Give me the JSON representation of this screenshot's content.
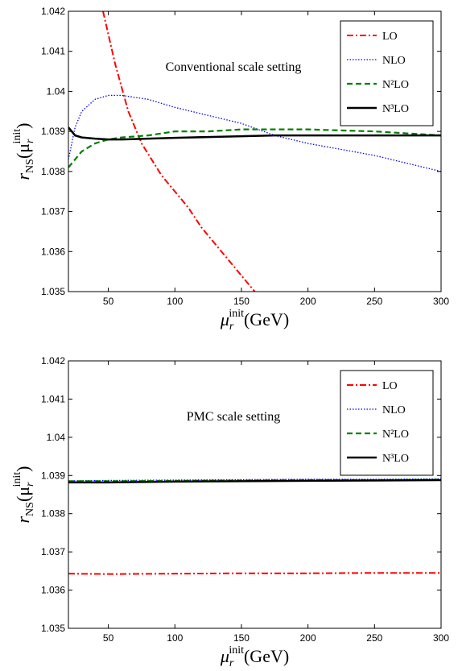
{
  "chart_data": [
    {
      "type": "line",
      "annotation": "Conventional scale setting",
      "x_label": {
        "symbol": "μ",
        "subscript": "r",
        "superscript": "init",
        "unit": "(GeV)"
      },
      "y_label": {
        "symbol": "r",
        "subscript": "NS",
        "open": "(μ",
        "argument_subscript": "r",
        "argument_superscript": "init",
        "close": ")"
      },
      "xlim": [
        20,
        300
      ],
      "xticks": [
        50,
        100,
        150,
        200,
        250,
        300
      ],
      "ylim": [
        1.035,
        1.042
      ],
      "yticks": [
        1.035,
        1.036,
        1.037,
        1.038,
        1.039,
        1.04,
        1.041,
        1.042
      ],
      "legend": "upper right",
      "series": [
        {
          "name": "LO",
          "color": "#ff0000",
          "linestyle": "dash-dot",
          "x": [
            46,
            55,
            65,
            75,
            90,
            100,
            110,
            120,
            130,
            145,
            160
          ],
          "values": [
            1.042,
            1.0407,
            1.0395,
            1.0387,
            1.0379,
            1.0375,
            1.0371,
            1.0366,
            1.0362,
            1.0356,
            1.035
          ]
        },
        {
          "name": "NLO",
          "color": "#0000ff",
          "linestyle": "dotted",
          "x": [
            20,
            25,
            30,
            40,
            50,
            60,
            80,
            100,
            125,
            150,
            175,
            200,
            250,
            300
          ],
          "values": [
            1.0383,
            1.0391,
            1.0395,
            1.0398,
            1.0399,
            1.0399,
            1.0398,
            1.0396,
            1.0394,
            1.0392,
            1.0389,
            1.0387,
            1.0384,
            1.038
          ]
        },
        {
          "name": "N²LO",
          "color": "#008000",
          "linestyle": "dashed",
          "x": [
            20,
            25,
            30,
            40,
            50,
            60,
            80,
            100,
            125,
            150,
            175,
            200,
            250,
            300
          ],
          "values": [
            1.0381,
            1.0383,
            1.0385,
            1.0387,
            1.0388,
            1.03885,
            1.0389,
            1.039,
            1.039,
            1.03905,
            1.03905,
            1.03905,
            1.039,
            1.0389
          ]
        },
        {
          "name": "N³LO",
          "color": "#000000",
          "linestyle": "solid",
          "x": [
            20,
            25,
            30,
            40,
            50,
            60,
            80,
            100,
            125,
            150,
            175,
            200,
            250,
            300
          ],
          "values": [
            1.0391,
            1.0389,
            1.03885,
            1.03882,
            1.0388,
            1.0388,
            1.03882,
            1.03884,
            1.03886,
            1.03888,
            1.0389,
            1.0389,
            1.0389,
            1.0389
          ]
        }
      ]
    },
    {
      "type": "line",
      "annotation": "PMC scale setting",
      "x_label": {
        "symbol": "μ",
        "subscript": "r",
        "superscript": "init",
        "unit": "(GeV)"
      },
      "y_label": {
        "symbol": "r",
        "subscript": "NS",
        "open": "(μ",
        "argument_subscript": "r",
        "argument_superscript": "init",
        "close": ")"
      },
      "xlim": [
        20,
        300
      ],
      "xticks": [
        50,
        100,
        150,
        200,
        250,
        300
      ],
      "ylim": [
        1.035,
        1.042
      ],
      "yticks": [
        1.035,
        1.036,
        1.037,
        1.038,
        1.039,
        1.04,
        1.041,
        1.042
      ],
      "legend": "upper right",
      "series": [
        {
          "name": "LO",
          "color": "#ff0000",
          "linestyle": "dash-dot",
          "x": [
            20,
            50,
            100,
            150,
            200,
            250,
            300
          ],
          "values": [
            1.03643,
            1.03642,
            1.03643,
            1.03644,
            1.03644,
            1.03645,
            1.03645
          ]
        },
        {
          "name": "NLO",
          "color": "#0000ff",
          "linestyle": "dotted",
          "x": [
            20,
            50,
            100,
            150,
            200,
            250,
            300
          ],
          "values": [
            1.03886,
            1.03887,
            1.03888,
            1.03889,
            1.0389,
            1.0389,
            1.03891
          ]
        },
        {
          "name": "N²LO",
          "color": "#008000",
          "linestyle": "dashed",
          "x": [
            20,
            50,
            100,
            150,
            200,
            250,
            300
          ],
          "values": [
            1.03885,
            1.03885,
            1.03886,
            1.03887,
            1.03888,
            1.03888,
            1.03889
          ]
        },
        {
          "name": "N³LO",
          "color": "#000000",
          "linestyle": "solid",
          "x": [
            20,
            50,
            100,
            150,
            200,
            250,
            300
          ],
          "values": [
            1.03882,
            1.03882,
            1.03884,
            1.03885,
            1.03886,
            1.03887,
            1.03888
          ]
        }
      ]
    }
  ]
}
